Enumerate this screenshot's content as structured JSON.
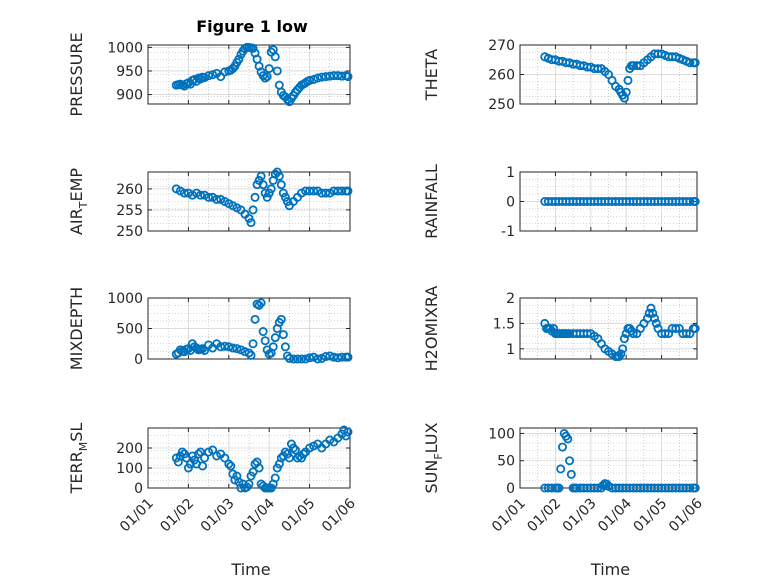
{
  "figure_title": "Figure 1 low",
  "chart_data": [
    {
      "type": "scatter",
      "title": "Figure 1 low",
      "ylabel": "PRESSURE",
      "ylim": [
        880,
        1005
      ],
      "yticks": [
        900,
        950,
        1000
      ],
      "yticklabels": [
        "900",
        "950",
        "1000"
      ],
      "xlim": [
        0,
        5
      ],
      "xticks": [
        0,
        1,
        2,
        3,
        4,
        5
      ],
      "xticklabels": [],
      "xlabel": "",
      "x": [
        0.7,
        0.75,
        0.8,
        0.85,
        0.9,
        0.95,
        1.0,
        1.05,
        1.1,
        1.15,
        1.2,
        1.25,
        1.3,
        1.35,
        1.4,
        1.5,
        1.6,
        1.7,
        1.8,
        1.9,
        2.0,
        2.05,
        2.1,
        2.15,
        2.2,
        2.25,
        2.3,
        2.35,
        2.4,
        2.45,
        2.5,
        2.55,
        2.6,
        2.65,
        2.7,
        2.75,
        2.8,
        2.85,
        2.9,
        2.95,
        3.0,
        3.05,
        3.1,
        3.15,
        3.2,
        3.25,
        3.3,
        3.35,
        3.4,
        3.45,
        3.5,
        3.55,
        3.6,
        3.65,
        3.7,
        3.75,
        3.8,
        3.85,
        3.9,
        3.95,
        4.0,
        4.1,
        4.2,
        4.3,
        4.4,
        4.5,
        4.6,
        4.7,
        4.8,
        4.9,
        4.95
      ],
      "y": [
        920,
        921,
        922,
        920,
        918,
        923,
        925,
        922,
        930,
        932,
        928,
        935,
        933,
        937,
        936,
        940,
        942,
        945,
        938,
        948,
        950,
        952,
        955,
        960,
        968,
        975,
        985,
        992,
        998,
        1000,
        1000,
        999,
        998,
        988,
        975,
        960,
        948,
        940,
        935,
        938,
        955,
        990,
        995,
        980,
        950,
        920,
        905,
        898,
        895,
        890,
        885,
        892,
        898,
        905,
        910,
        915,
        920,
        922,
        925,
        928,
        930,
        932,
        935,
        937,
        938,
        939,
        940,
        940,
        939,
        940,
        938
      ]
    },
    {
      "type": "scatter",
      "title": "",
      "ylabel": "THETA",
      "ylim": [
        250,
        270
      ],
      "yticks": [
        250,
        260,
        270
      ],
      "yticklabels": [
        "250",
        "260",
        "270"
      ],
      "xlim": [
        0,
        5
      ],
      "xticks": [
        0,
        1,
        2,
        3,
        4,
        5
      ],
      "xticklabels": [],
      "xlabel": "",
      "x": [
        0.7,
        0.8,
        0.9,
        1.0,
        1.1,
        1.2,
        1.3,
        1.4,
        1.5,
        1.6,
        1.7,
        1.8,
        1.9,
        2.0,
        2.1,
        2.2,
        2.3,
        2.4,
        2.5,
        2.6,
        2.7,
        2.8,
        2.85,
        2.9,
        2.95,
        3.0,
        3.05,
        3.1,
        3.15,
        3.2,
        3.3,
        3.4,
        3.5,
        3.6,
        3.7,
        3.8,
        3.9,
        4.0,
        4.1,
        4.2,
        4.3,
        4.4,
        4.5,
        4.6,
        4.7,
        4.8,
        4.9,
        4.95
      ],
      "y": [
        266,
        265.5,
        265,
        265,
        264.5,
        264.5,
        264,
        264,
        263.5,
        263.5,
        263,
        263,
        262.5,
        262.5,
        262,
        262,
        262,
        261,
        260,
        258,
        256,
        255,
        254,
        253,
        252,
        254,
        258,
        262,
        263,
        263,
        263,
        263,
        264,
        265,
        266,
        267,
        267,
        267,
        266.5,
        266,
        266,
        266,
        265.5,
        265,
        264.5,
        264,
        264,
        264
      ]
    },
    {
      "type": "scatter",
      "title": "",
      "ylabel": "AIR_TEMP",
      "ylim": [
        250,
        264
      ],
      "yticks": [
        250,
        255,
        260
      ],
      "yticklabels": [
        "250",
        "255",
        "260"
      ],
      "xlim": [
        0,
        5
      ],
      "xticks": [
        0,
        1,
        2,
        3,
        4,
        5
      ],
      "xticklabels": [],
      "xlabel": "",
      "x": [
        0.7,
        0.8,
        0.9,
        1.0,
        1.1,
        1.2,
        1.3,
        1.4,
        1.5,
        1.6,
        1.7,
        1.8,
        1.9,
        2.0,
        2.1,
        2.2,
        2.3,
        2.4,
        2.5,
        2.55,
        2.6,
        2.65,
        2.7,
        2.75,
        2.8,
        2.85,
        2.9,
        2.95,
        3.0,
        3.05,
        3.1,
        3.15,
        3.2,
        3.25,
        3.3,
        3.35,
        3.4,
        3.45,
        3.5,
        3.6,
        3.7,
        3.8,
        3.9,
        4.0,
        4.1,
        4.2,
        4.3,
        4.4,
        4.5,
        4.6,
        4.7,
        4.8,
        4.9,
        4.95
      ],
      "y": [
        260,
        259.5,
        259,
        259,
        258.5,
        259,
        258.5,
        258.5,
        258,
        258,
        257.5,
        257.5,
        257,
        256.5,
        256,
        255.5,
        255,
        254,
        253,
        252,
        255,
        258,
        261,
        262,
        263,
        261,
        259,
        258,
        259,
        260,
        262,
        263.5,
        264,
        263,
        261,
        259,
        258,
        257,
        256,
        257,
        258,
        259,
        259.5,
        259.5,
        259.5,
        259.5,
        259,
        259,
        259,
        259.5,
        259.5,
        259.5,
        259.5,
        259.5
      ]
    },
    {
      "type": "scatter",
      "title": "",
      "ylabel": "RAINFALL",
      "ylim": [
        -1,
        1
      ],
      "yticks": [
        -1,
        0,
        1
      ],
      "yticklabels": [
        "-1",
        "0",
        "1"
      ],
      "xlim": [
        0,
        5
      ],
      "xticks": [
        0,
        1,
        2,
        3,
        4,
        5
      ],
      "xticklabels": [],
      "xlabel": "",
      "x": [
        0.7,
        0.8,
        0.9,
        1.0,
        1.1,
        1.2,
        1.3,
        1.4,
        1.5,
        1.6,
        1.7,
        1.8,
        1.9,
        2.0,
        2.1,
        2.2,
        2.3,
        2.4,
        2.5,
        2.6,
        2.7,
        2.8,
        2.9,
        3.0,
        3.1,
        3.2,
        3.3,
        3.4,
        3.5,
        3.6,
        3.7,
        3.8,
        3.9,
        4.0,
        4.1,
        4.2,
        4.3,
        4.4,
        4.5,
        4.6,
        4.7,
        4.8,
        4.9,
        4.95
      ],
      "y": [
        0,
        0,
        0,
        0,
        0,
        0,
        0,
        0,
        0,
        0,
        0,
        0,
        0,
        0,
        0,
        0,
        0,
        0,
        0,
        0,
        0,
        0,
        0,
        0,
        0,
        0,
        0,
        0,
        0,
        0,
        0,
        0,
        0,
        0,
        0,
        0,
        0,
        0,
        0,
        0,
        0,
        0,
        0,
        0
      ]
    },
    {
      "type": "scatter",
      "title": "",
      "ylabel": "MIXDEPTH",
      "ylim": [
        0,
        1000
      ],
      "yticks": [
        0,
        500,
        1000
      ],
      "yticklabels": [
        "0",
        "500",
        "1000"
      ],
      "xlim": [
        0,
        5
      ],
      "xticks": [
        0,
        1,
        2,
        3,
        4,
        5
      ],
      "xticklabels": [],
      "xlabel": "",
      "x": [
        0.7,
        0.75,
        0.8,
        0.85,
        0.9,
        0.95,
        1.0,
        1.05,
        1.1,
        1.15,
        1.2,
        1.25,
        1.3,
        1.35,
        1.4,
        1.5,
        1.6,
        1.7,
        1.8,
        1.9,
        2.0,
        2.1,
        2.2,
        2.3,
        2.4,
        2.5,
        2.55,
        2.6,
        2.65,
        2.7,
        2.75,
        2.8,
        2.85,
        2.9,
        2.95,
        3.0,
        3.05,
        3.1,
        3.15,
        3.2,
        3.25,
        3.3,
        3.35,
        3.4,
        3.45,
        3.5,
        3.6,
        3.7,
        3.8,
        3.9,
        4.0,
        4.1,
        4.2,
        4.3,
        4.4,
        4.5,
        4.6,
        4.7,
        4.8,
        4.9,
        4.95
      ],
      "y": [
        80,
        100,
        150,
        130,
        120,
        160,
        170,
        140,
        250,
        200,
        180,
        150,
        160,
        170,
        140,
        230,
        180,
        250,
        200,
        210,
        200,
        180,
        170,
        150,
        120,
        100,
        60,
        250,
        650,
        900,
        880,
        920,
        450,
        300,
        150,
        80,
        100,
        200,
        350,
        500,
        600,
        650,
        400,
        200,
        50,
        10,
        0,
        0,
        0,
        0,
        20,
        30,
        0,
        10,
        40,
        50,
        30,
        20,
        30,
        30,
        30
      ]
    },
    {
      "type": "scatter",
      "title": "",
      "ylabel": "H2OMIXRA",
      "ylim": [
        0.8,
        2
      ],
      "yticks": [
        1,
        1.5,
        2
      ],
      "yticklabels": [
        "1",
        "1.5",
        "2"
      ],
      "xlim": [
        0,
        5
      ],
      "xticks": [
        0,
        1,
        2,
        3,
        4,
        5
      ],
      "xticklabels": [],
      "xlabel": "",
      "x": [
        0.7,
        0.75,
        0.8,
        0.85,
        0.9,
        0.95,
        1.0,
        1.05,
        1.1,
        1.15,
        1.2,
        1.25,
        1.3,
        1.35,
        1.4,
        1.5,
        1.6,
        1.7,
        1.8,
        1.9,
        2.0,
        2.1,
        2.2,
        2.3,
        2.4,
        2.5,
        2.6,
        2.7,
        2.75,
        2.8,
        2.85,
        2.9,
        2.95,
        3.0,
        3.05,
        3.1,
        3.15,
        3.2,
        3.3,
        3.4,
        3.5,
        3.6,
        3.65,
        3.7,
        3.75,
        3.8,
        3.85,
        3.9,
        4.0,
        4.1,
        4.2,
        4.3,
        4.4,
        4.5,
        4.6,
        4.7,
        4.8,
        4.9,
        4.95
      ],
      "y": [
        1.5,
        1.4,
        1.4,
        1.4,
        1.35,
        1.4,
        1.3,
        1.3,
        1.3,
        1.3,
        1.3,
        1.3,
        1.3,
        1.3,
        1.3,
        1.3,
        1.3,
        1.3,
        1.3,
        1.3,
        1.3,
        1.25,
        1.2,
        1.1,
        1.0,
        0.95,
        0.9,
        0.85,
        0.85,
        0.85,
        0.9,
        1.0,
        1.2,
        1.3,
        1.4,
        1.4,
        1.35,
        1.3,
        1.3,
        1.4,
        1.5,
        1.6,
        1.7,
        1.8,
        1.7,
        1.6,
        1.5,
        1.4,
        1.3,
        1.3,
        1.3,
        1.4,
        1.4,
        1.4,
        1.3,
        1.3,
        1.3,
        1.4,
        1.4
      ]
    },
    {
      "type": "scatter",
      "title": "",
      "ylabel": "TERR_MSL",
      "ylim": [
        0,
        300
      ],
      "yticks": [
        0,
        100,
        200
      ],
      "yticklabels": [
        "0",
        "100",
        "200"
      ],
      "xlim": [
        0,
        5
      ],
      "xticks": [
        0,
        1,
        2,
        3,
        4,
        5
      ],
      "xticklabels": [
        "01/01",
        "01/02",
        "01/03",
        "01/04",
        "01/05",
        "01/06"
      ],
      "xlabel": "Time",
      "x": [
        0.7,
        0.75,
        0.8,
        0.85,
        0.9,
        0.95,
        1.0,
        1.05,
        1.1,
        1.15,
        1.2,
        1.25,
        1.3,
        1.35,
        1.4,
        1.5,
        1.6,
        1.7,
        1.8,
        1.9,
        2.0,
        2.05,
        2.1,
        2.15,
        2.2,
        2.25,
        2.3,
        2.35,
        2.4,
        2.45,
        2.5,
        2.55,
        2.6,
        2.65,
        2.7,
        2.75,
        2.8,
        2.85,
        2.9,
        2.95,
        3.0,
        3.05,
        3.1,
        3.15,
        3.2,
        3.25,
        3.3,
        3.35,
        3.4,
        3.45,
        3.5,
        3.55,
        3.6,
        3.65,
        3.7,
        3.75,
        3.8,
        3.85,
        3.9,
        4.0,
        4.1,
        4.2,
        4.3,
        4.4,
        4.5,
        4.6,
        4.7,
        4.8,
        4.85,
        4.9,
        4.95
      ],
      "y": [
        150,
        130,
        160,
        180,
        170,
        150,
        100,
        120,
        160,
        140,
        120,
        170,
        180,
        110,
        150,
        180,
        190,
        160,
        170,
        150,
        120,
        110,
        70,
        40,
        60,
        30,
        0,
        20,
        0,
        5,
        20,
        60,
        80,
        120,
        130,
        100,
        20,
        10,
        0,
        0,
        0,
        0,
        20,
        50,
        100,
        120,
        150,
        160,
        180,
        170,
        150,
        220,
        200,
        190,
        150,
        160,
        150,
        170,
        180,
        200,
        210,
        220,
        200,
        220,
        240,
        230,
        250,
        270,
        290,
        260,
        280
      ]
    },
    {
      "type": "scatter",
      "title": "",
      "ylabel": "SUN_FLUX",
      "ylim": [
        0,
        110
      ],
      "yticks": [
        0,
        50,
        100
      ],
      "yticklabels": [
        "0",
        "50",
        "100"
      ],
      "xlim": [
        0,
        5
      ],
      "xticks": [
        0,
        1,
        2,
        3,
        4,
        5
      ],
      "xticklabels": [
        "01/01",
        "01/02",
        "01/03",
        "01/04",
        "01/05",
        "01/06"
      ],
      "xlabel": "Time",
      "x": [
        0.7,
        0.8,
        0.9,
        1.0,
        1.05,
        1.1,
        1.15,
        1.2,
        1.25,
        1.3,
        1.35,
        1.4,
        1.45,
        1.5,
        1.55,
        1.6,
        1.7,
        1.8,
        1.9,
        2.0,
        2.1,
        2.2,
        2.3,
        2.35,
        2.4,
        2.45,
        2.5,
        2.6,
        2.7,
        2.8,
        2.9,
        3.0,
        3.1,
        3.2,
        3.3,
        3.4,
        3.5,
        3.6,
        3.7,
        3.8,
        3.9,
        4.0,
        4.1,
        4.2,
        4.3,
        4.4,
        4.5,
        4.6,
        4.7,
        4.8,
        4.9,
        4.95
      ],
      "y": [
        0,
        0,
        0,
        0,
        0,
        0,
        35,
        75,
        100,
        95,
        90,
        50,
        25,
        0,
        0,
        0,
        0,
        0,
        0,
        0,
        0,
        0,
        0,
        5,
        8,
        7,
        3,
        0,
        0,
        0,
        0,
        0,
        0,
        0,
        0,
        0,
        0,
        0,
        0,
        0,
        0,
        0,
        0,
        0,
        0,
        0,
        0,
        0,
        0,
        0,
        0,
        0
      ]
    }
  ],
  "colors": {
    "marker": "#0072BD",
    "axes": "#262626",
    "grid": "#b0b0b0"
  }
}
